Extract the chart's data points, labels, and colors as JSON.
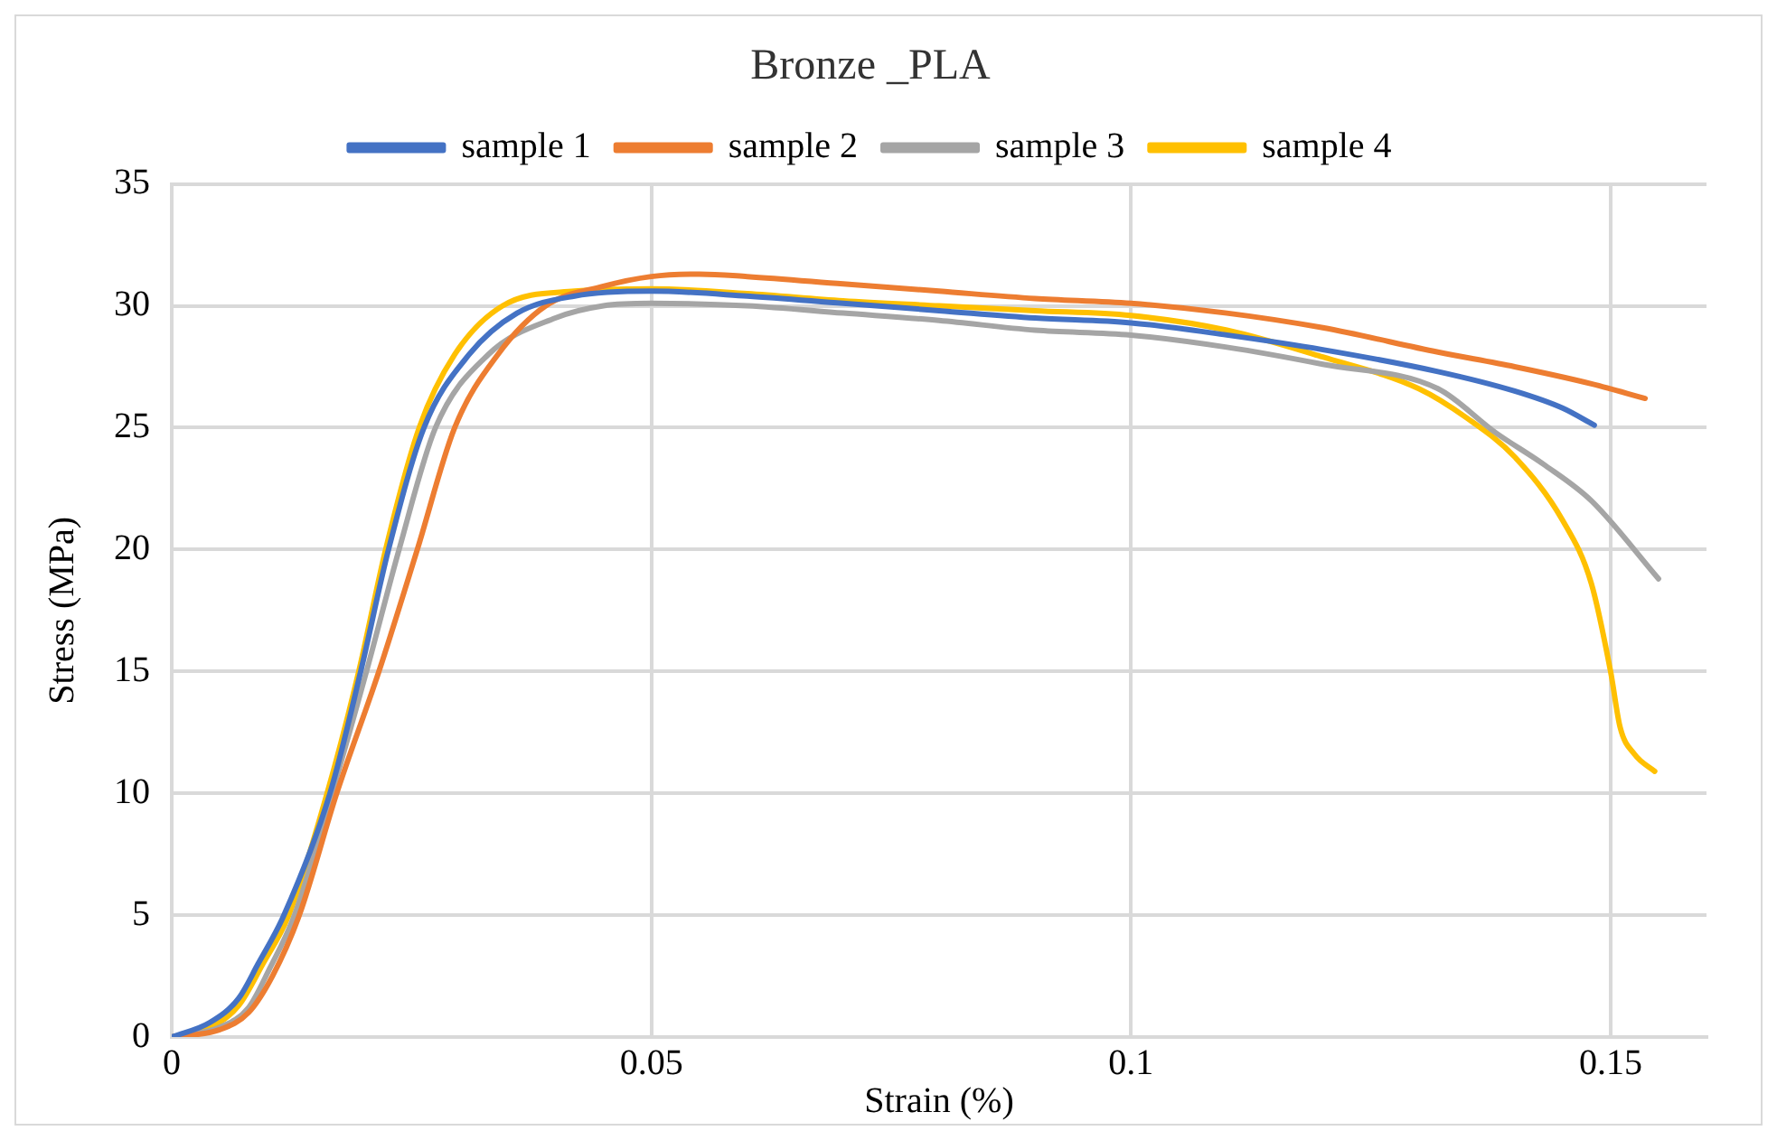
{
  "chart_data": {
    "type": "line",
    "title": "Bronze _PLA",
    "xlabel": "Strain (%)",
    "ylabel": "Stress (MPa)",
    "xlim": [
      0,
      0.16
    ],
    "xticks": [
      0,
      0.05,
      0.1,
      0.15
    ],
    "ylim": [
      0,
      35
    ],
    "yticks": [
      0,
      5,
      10,
      15,
      20,
      25,
      30,
      35
    ],
    "grid": true,
    "legend": "top",
    "marker": "none",
    "line_style": "solid",
    "series": [
      {
        "name": "sample 1",
        "color": "#4472c4",
        "x": [
          0,
          0.004,
          0.007,
          0.009,
          0.0117,
          0.0165,
          0.0197,
          0.0226,
          0.0263,
          0.031,
          0.036,
          0.042,
          0.05,
          0.06,
          0.07,
          0.08,
          0.09,
          0.1,
          0.11,
          0.12,
          0.132,
          0.14,
          0.145,
          0.1483
        ],
        "values": [
          0,
          0.6,
          1.6,
          3,
          5,
          10,
          15,
          20,
          25,
          28,
          29.7,
          30.4,
          30.6,
          30.4,
          30.1,
          29.8,
          29.5,
          29.3,
          28.8,
          28.2,
          27.3,
          26.5,
          25.8,
          25.1
        ]
      },
      {
        "name": "sample 2",
        "color": "#ed7d31",
        "x": [
          0,
          0.005,
          0.008,
          0.0105,
          0.0133,
          0.0172,
          0.0216,
          0.0256,
          0.0295,
          0.034,
          0.039,
          0.045,
          0.05,
          0.055,
          0.06,
          0.07,
          0.08,
          0.09,
          0.1,
          0.11,
          0.12,
          0.132,
          0.14,
          0.148,
          0.1536
        ],
        "values": [
          0,
          0.3,
          1,
          2.5,
          5,
          10,
          15,
          20,
          25,
          28,
          30,
          30.8,
          31.2,
          31.3,
          31.2,
          30.9,
          30.6,
          30.3,
          30.1,
          29.7,
          29.1,
          28.1,
          27.5,
          26.8,
          26.2
        ]
      },
      {
        "name": "sample 3",
        "color": "#a5a5a5",
        "x": [
          0,
          0.005,
          0.008,
          0.0102,
          0.0128,
          0.0167,
          0.0203,
          0.0237,
          0.0275,
          0.033,
          0.04,
          0.045,
          0.05,
          0.06,
          0.07,
          0.08,
          0.09,
          0.1,
          0.11,
          0.12,
          0.132,
          0.138,
          0.143,
          0.148,
          0.155
        ],
        "values": [
          0,
          0.4,
          1.2,
          2.8,
          5,
          10,
          15,
          20,
          25,
          28,
          29.5,
          30,
          30.1,
          30,
          29.7,
          29.4,
          29,
          28.8,
          28.3,
          27.6,
          26.6,
          24.8,
          23.5,
          22,
          18.8
        ]
      },
      {
        "name": "sample 4",
        "color": "#ffc000",
        "x": [
          0,
          0.004,
          0.007,
          0.0095,
          0.0122,
          0.0162,
          0.0195,
          0.0223,
          0.0258,
          0.0295,
          0.0345,
          0.042,
          0.05,
          0.06,
          0.07,
          0.08,
          0.09,
          0.1,
          0.11,
          0.12,
          0.13,
          0.135,
          0.14,
          0.145,
          0.148,
          0.15,
          0.151,
          0.1525,
          0.1546
        ],
        "values": [
          0,
          0.4,
          1.3,
          3,
          5,
          10,
          15,
          20,
          25,
          28,
          30,
          30.6,
          30.7,
          30.5,
          30.2,
          30,
          29.8,
          29.6,
          29,
          27.9,
          26.6,
          25.4,
          23.8,
          21.2,
          18.6,
          15,
          12.7,
          11.6,
          10.9
        ]
      }
    ]
  }
}
